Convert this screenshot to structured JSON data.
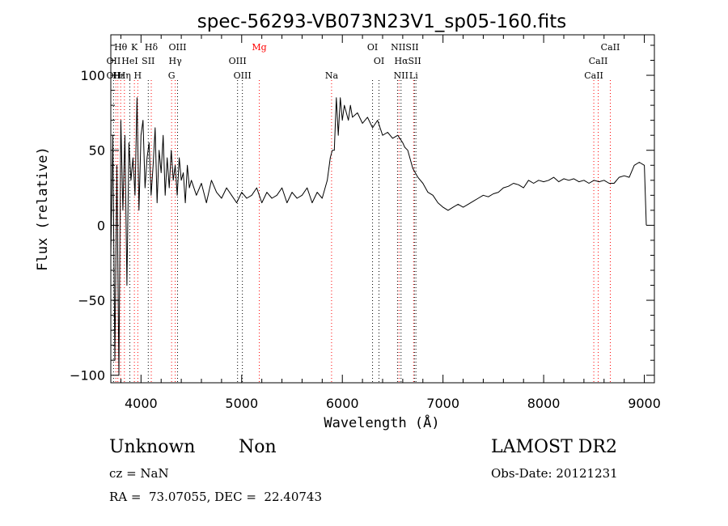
{
  "chart_data": {
    "type": "line",
    "title": "spec-56293-VB073N23V1_sp05-160.fits",
    "xlabel": "Wavelength (Å)",
    "ylabel": "Flux (relative)",
    "xlim": [
      3700,
      9100
    ],
    "ylim": [
      -105,
      127
    ],
    "xticks": [
      {
        "value": 4000,
        "label": "4000"
      },
      {
        "value": 5000,
        "label": "5000"
      },
      {
        "value": 6000,
        "label": "6000"
      },
      {
        "value": 7000,
        "label": "7000"
      },
      {
        "value": 8000,
        "label": "8000"
      },
      {
        "value": 9000,
        "label": "9000"
      }
    ],
    "yticks": [
      {
        "value": 100,
        "label": "100"
      },
      {
        "value": 50,
        "label": "50"
      },
      {
        "value": 0,
        "label": "0"
      },
      {
        "value": -50,
        "label": "−50"
      },
      {
        "value": -100,
        "label": "−100"
      }
    ],
    "series": [
      {
        "color": "#000000",
        "x": [
          3700,
          3720,
          3740,
          3760,
          3780,
          3800,
          3820,
          3840,
          3860,
          3880,
          3900,
          3920,
          3940,
          3960,
          3980,
          4000,
          4020,
          4040,
          4060,
          4080,
          4100,
          4120,
          4140,
          4160,
          4180,
          4200,
          4220,
          4240,
          4260,
          4280,
          4300,
          4320,
          4340,
          4360,
          4380,
          4400,
          4420,
          4440,
          4460,
          4480,
          4500,
          4550,
          4600,
          4650,
          4700,
          4750,
          4800,
          4850,
          4900,
          4950,
          5000,
          5050,
          5100,
          5150,
          5200,
          5250,
          5300,
          5350,
          5400,
          5450,
          5500,
          5550,
          5600,
          5650,
          5700,
          5750,
          5800,
          5850,
          5880,
          5900,
          5920,
          5940,
          5960,
          5980,
          6000,
          6020,
          6040,
          6060,
          6080,
          6100,
          6150,
          6200,
          6250,
          6300,
          6350,
          6400,
          6450,
          6500,
          6550,
          6600,
          6620,
          6650,
          6700,
          6750,
          6800,
          6850,
          6900,
          6950,
          7000,
          7050,
          7100,
          7150,
          7200,
          7250,
          7300,
          7350,
          7400,
          7450,
          7500,
          7550,
          7600,
          7650,
          7700,
          7750,
          7800,
          7850,
          7900,
          7950,
          8000,
          8050,
          8100,
          8150,
          8200,
          8250,
          8300,
          8350,
          8400,
          8450,
          8500,
          8550,
          8600,
          8650,
          8700,
          8750,
          8800,
          8850,
          8900,
          8950,
          9000,
          9010,
          9020
        ],
        "y": [
          -20,
          60,
          -90,
          40,
          -100,
          70,
          10,
          60,
          -40,
          55,
          30,
          45,
          20,
          85,
          10,
          60,
          70,
          25,
          45,
          55,
          20,
          40,
          65,
          15,
          50,
          35,
          60,
          20,
          45,
          25,
          50,
          30,
          40,
          20,
          45,
          30,
          35,
          15,
          40,
          25,
          30,
          20,
          28,
          15,
          30,
          22,
          18,
          25,
          20,
          15,
          22,
          18,
          20,
          25,
          15,
          22,
          18,
          20,
          25,
          15,
          22,
          18,
          20,
          25,
          15,
          22,
          18,
          30,
          45,
          50,
          50,
          85,
          60,
          85,
          70,
          80,
          75,
          70,
          80,
          72,
          75,
          68,
          72,
          65,
          70,
          60,
          62,
          58,
          60,
          55,
          52,
          50,
          38,
          32,
          28,
          22,
          20,
          15,
          12,
          10,
          12,
          14,
          12,
          14,
          16,
          18,
          20,
          19,
          21,
          22,
          25,
          26,
          28,
          27,
          25,
          30,
          28,
          30,
          29,
          30,
          32,
          29,
          31,
          30,
          31,
          29,
          30,
          28,
          30,
          29,
          30,
          28,
          28,
          32,
          33,
          32,
          40,
          42,
          40,
          20,
          0
        ]
      }
    ],
    "line_labels": [
      {
        "text": "Hθ",
        "wavelength": 3798,
        "row": 1,
        "color": "#000000"
      },
      {
        "text": "K",
        "wavelength": 3934,
        "row": 1,
        "color": "#000000"
      },
      {
        "text": "Hδ",
        "wavelength": 4102,
        "row": 1,
        "color": "#000000"
      },
      {
        "text": "OIII",
        "wavelength": 4363,
        "row": 1,
        "color": "#000000"
      },
      {
        "text": "Mg",
        "wavelength": 5175,
        "row": 1,
        "color": "#ff0000"
      },
      {
        "text": "OI",
        "wavelength": 6300,
        "row": 1,
        "color": "#000000"
      },
      {
        "text": "NIISII",
        "wavelength": 6620,
        "row": 1,
        "color": "#000000"
      },
      {
        "text": "CaII",
        "wavelength": 8662,
        "row": 1,
        "color": "#000000"
      },
      {
        "text": "OII",
        "wavelength": 3727,
        "row": 2,
        "color": "#000000"
      },
      {
        "text": "HeI",
        "wavelength": 3889,
        "row": 2,
        "color": "#000000"
      },
      {
        "text": "SII",
        "wavelength": 4072,
        "row": 2,
        "color": "#000000"
      },
      {
        "text": "Hγ",
        "wavelength": 4340,
        "row": 2,
        "color": "#000000"
      },
      {
        "text": "OIII",
        "wavelength": 4959,
        "row": 2,
        "color": "#000000"
      },
      {
        "text": "OI",
        "wavelength": 6364,
        "row": 2,
        "color": "#000000"
      },
      {
        "text": "HαSII",
        "wavelength": 6650,
        "row": 2,
        "color": "#000000"
      },
      {
        "text": "CaII",
        "wavelength": 8542,
        "row": 2,
        "color": "#000000"
      },
      {
        "text": "OII",
        "wavelength": 3727,
        "row": 3,
        "color": "#000000"
      },
      {
        "text": "Hε",
        "wavelength": 3780,
        "row": 3,
        "color": "#000000"
      },
      {
        "text": "Hη",
        "wavelength": 3835,
        "row": 3,
        "color": "#000000"
      },
      {
        "text": "H",
        "wavelength": 3968,
        "row": 3,
        "color": "#000000"
      },
      {
        "text": "G",
        "wavelength": 4304,
        "row": 3,
        "color": "#000000"
      },
      {
        "text": "OIII",
        "wavelength": 5007,
        "row": 3,
        "color": "#000000"
      },
      {
        "text": "Na",
        "wavelength": 5893,
        "row": 3,
        "color": "#000000"
      },
      {
        "text": "NII",
        "wavelength": 6583,
        "row": 3,
        "color": "#000000"
      },
      {
        "text": "Li",
        "wavelength": 6708,
        "row": 3,
        "color": "#000000"
      },
      {
        "text": "CaII",
        "wavelength": 8498,
        "row": 3,
        "color": "#000000"
      }
    ],
    "line_markers": [
      {
        "wavelength": 3727,
        "color": "#000000"
      },
      {
        "wavelength": 3750,
        "color": "#ff0000"
      },
      {
        "wavelength": 3770,
        "color": "#ff0000"
      },
      {
        "wavelength": 3798,
        "color": "#ff0000"
      },
      {
        "wavelength": 3835,
        "color": "#ff0000"
      },
      {
        "wavelength": 3889,
        "color": "#000000"
      },
      {
        "wavelength": 3934,
        "color": "#ff0000"
      },
      {
        "wavelength": 3968,
        "color": "#ff0000"
      },
      {
        "wavelength": 4072,
        "color": "#000000"
      },
      {
        "wavelength": 4102,
        "color": "#ff0000"
      },
      {
        "wavelength": 4304,
        "color": "#ff0000"
      },
      {
        "wavelength": 4340,
        "color": "#ff0000"
      },
      {
        "wavelength": 4363,
        "color": "#000000"
      },
      {
        "wavelength": 4959,
        "color": "#000000"
      },
      {
        "wavelength": 5007,
        "color": "#000000"
      },
      {
        "wavelength": 5175,
        "color": "#ff0000"
      },
      {
        "wavelength": 5893,
        "color": "#ff0000"
      },
      {
        "wavelength": 6300,
        "color": "#000000"
      },
      {
        "wavelength": 6364,
        "color": "#000000"
      },
      {
        "wavelength": 6548,
        "color": "#000000"
      },
      {
        "wavelength": 6563,
        "color": "#ff0000"
      },
      {
        "wavelength": 6583,
        "color": "#000000"
      },
      {
        "wavelength": 6708,
        "color": "#ff0000"
      },
      {
        "wavelength": 6716,
        "color": "#000000"
      },
      {
        "wavelength": 6731,
        "color": "#000000"
      },
      {
        "wavelength": 8498,
        "color": "#ff0000"
      },
      {
        "wavelength": 8542,
        "color": "#ff0000"
      },
      {
        "wavelength": 8662,
        "color": "#ff0000"
      }
    ]
  },
  "info": {
    "class_label": "Unknown",
    "subclass_label": "Non",
    "survey": "LAMOST DR2",
    "cz_text": "cz = NaN",
    "obs_date_text": "Obs-Date: 20121231",
    "radec_text": "RA =  73.07055, DEC =  22.40743"
  }
}
